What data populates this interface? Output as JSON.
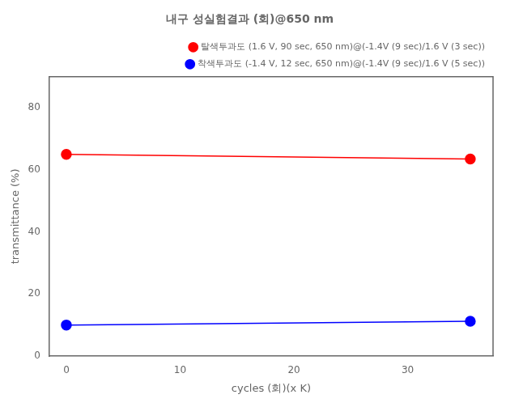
{
  "chart_data": {
    "type": "line",
    "title": "내구 성실험결과 (회)@650 nm",
    "xlabel": "cycles (회)(x K)",
    "ylabel": "transmittance (%)",
    "x": [
      0.0,
      35.5
    ],
    "series": [
      {
        "name": "탈색투과도 (1.6 V, 90 sec, 650 nm)@(-1.4V (9 sec)/1.6 V (3 sec))",
        "color": "#FF0000",
        "values": [
          65.0,
          63.5
        ],
        "marker": "circle",
        "line_style": "solid"
      },
      {
        "name": "착색투과도 (-1.4 V, 12 sec, 650 nm)@(-1.4V (9 sec)/1.6 V (5 sec))",
        "color": "#0000FF",
        "values": [
          10.0,
          11.2
        ],
        "marker": "circle",
        "line_style": "solid"
      }
    ],
    "xlim": [
      -1.5,
      37.5
    ],
    "xticks": [
      0,
      10,
      20,
      30
    ],
    "ylim": [
      0,
      90
    ],
    "yticks": [
      0,
      20,
      40,
      60,
      80
    ],
    "grid": false,
    "legend": "upper right"
  }
}
